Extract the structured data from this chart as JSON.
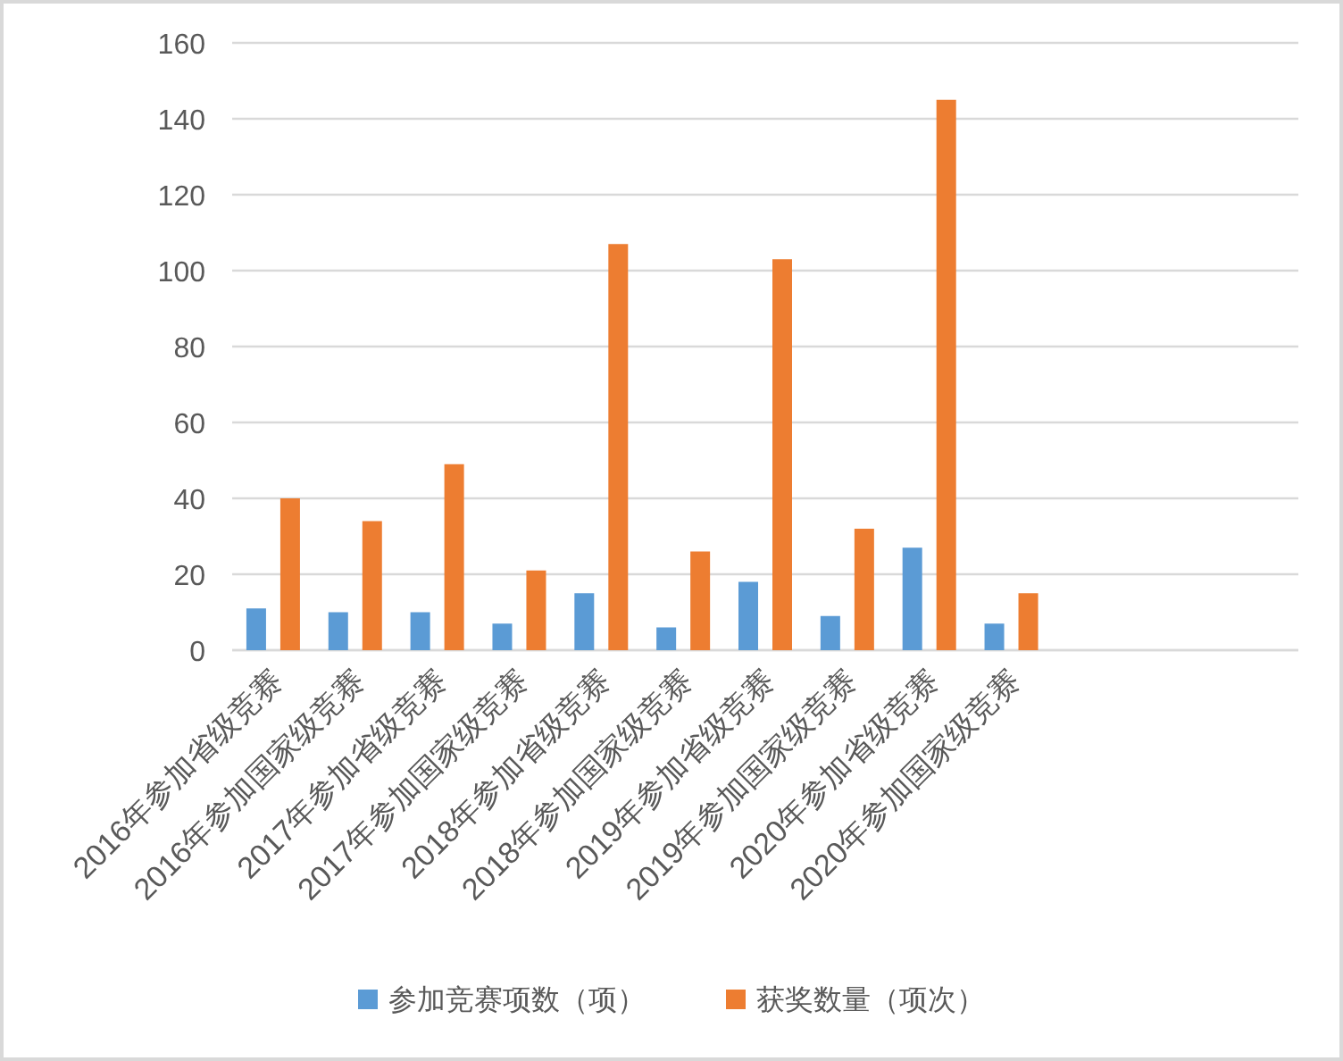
{
  "chart_data": {
    "type": "bar",
    "categories": [
      "2016年参加省级竞赛",
      "2016年参加国家级竞赛",
      "2017年参加省级竞赛",
      "2017年参加国家级竞赛",
      "2018年参加省级竞赛",
      "2018年参加国家级竞赛",
      "2019年参加省级竞赛",
      "2019年参加国家级竞赛",
      "2020年参加省级竞赛",
      "2020年参加国家级竞赛",
      null,
      null,
      null
    ],
    "series": [
      {
        "name": "参加竞赛项数（项）",
        "color": "#5b9bd5",
        "values": [
          11,
          10,
          10,
          7,
          15,
          6,
          18,
          9,
          27,
          7,
          null,
          null,
          null
        ]
      },
      {
        "name": "获奖数量（项次）",
        "color": "#ed7d31",
        "values": [
          40,
          34,
          49,
          21,
          107,
          26,
          103,
          32,
          145,
          15,
          null,
          null,
          null
        ]
      }
    ],
    "ylim": [
      0,
      160
    ],
    "yticks": [
      0,
      20,
      40,
      60,
      80,
      100,
      120,
      140,
      160
    ],
    "grid": "y",
    "legend": "bottom"
  }
}
